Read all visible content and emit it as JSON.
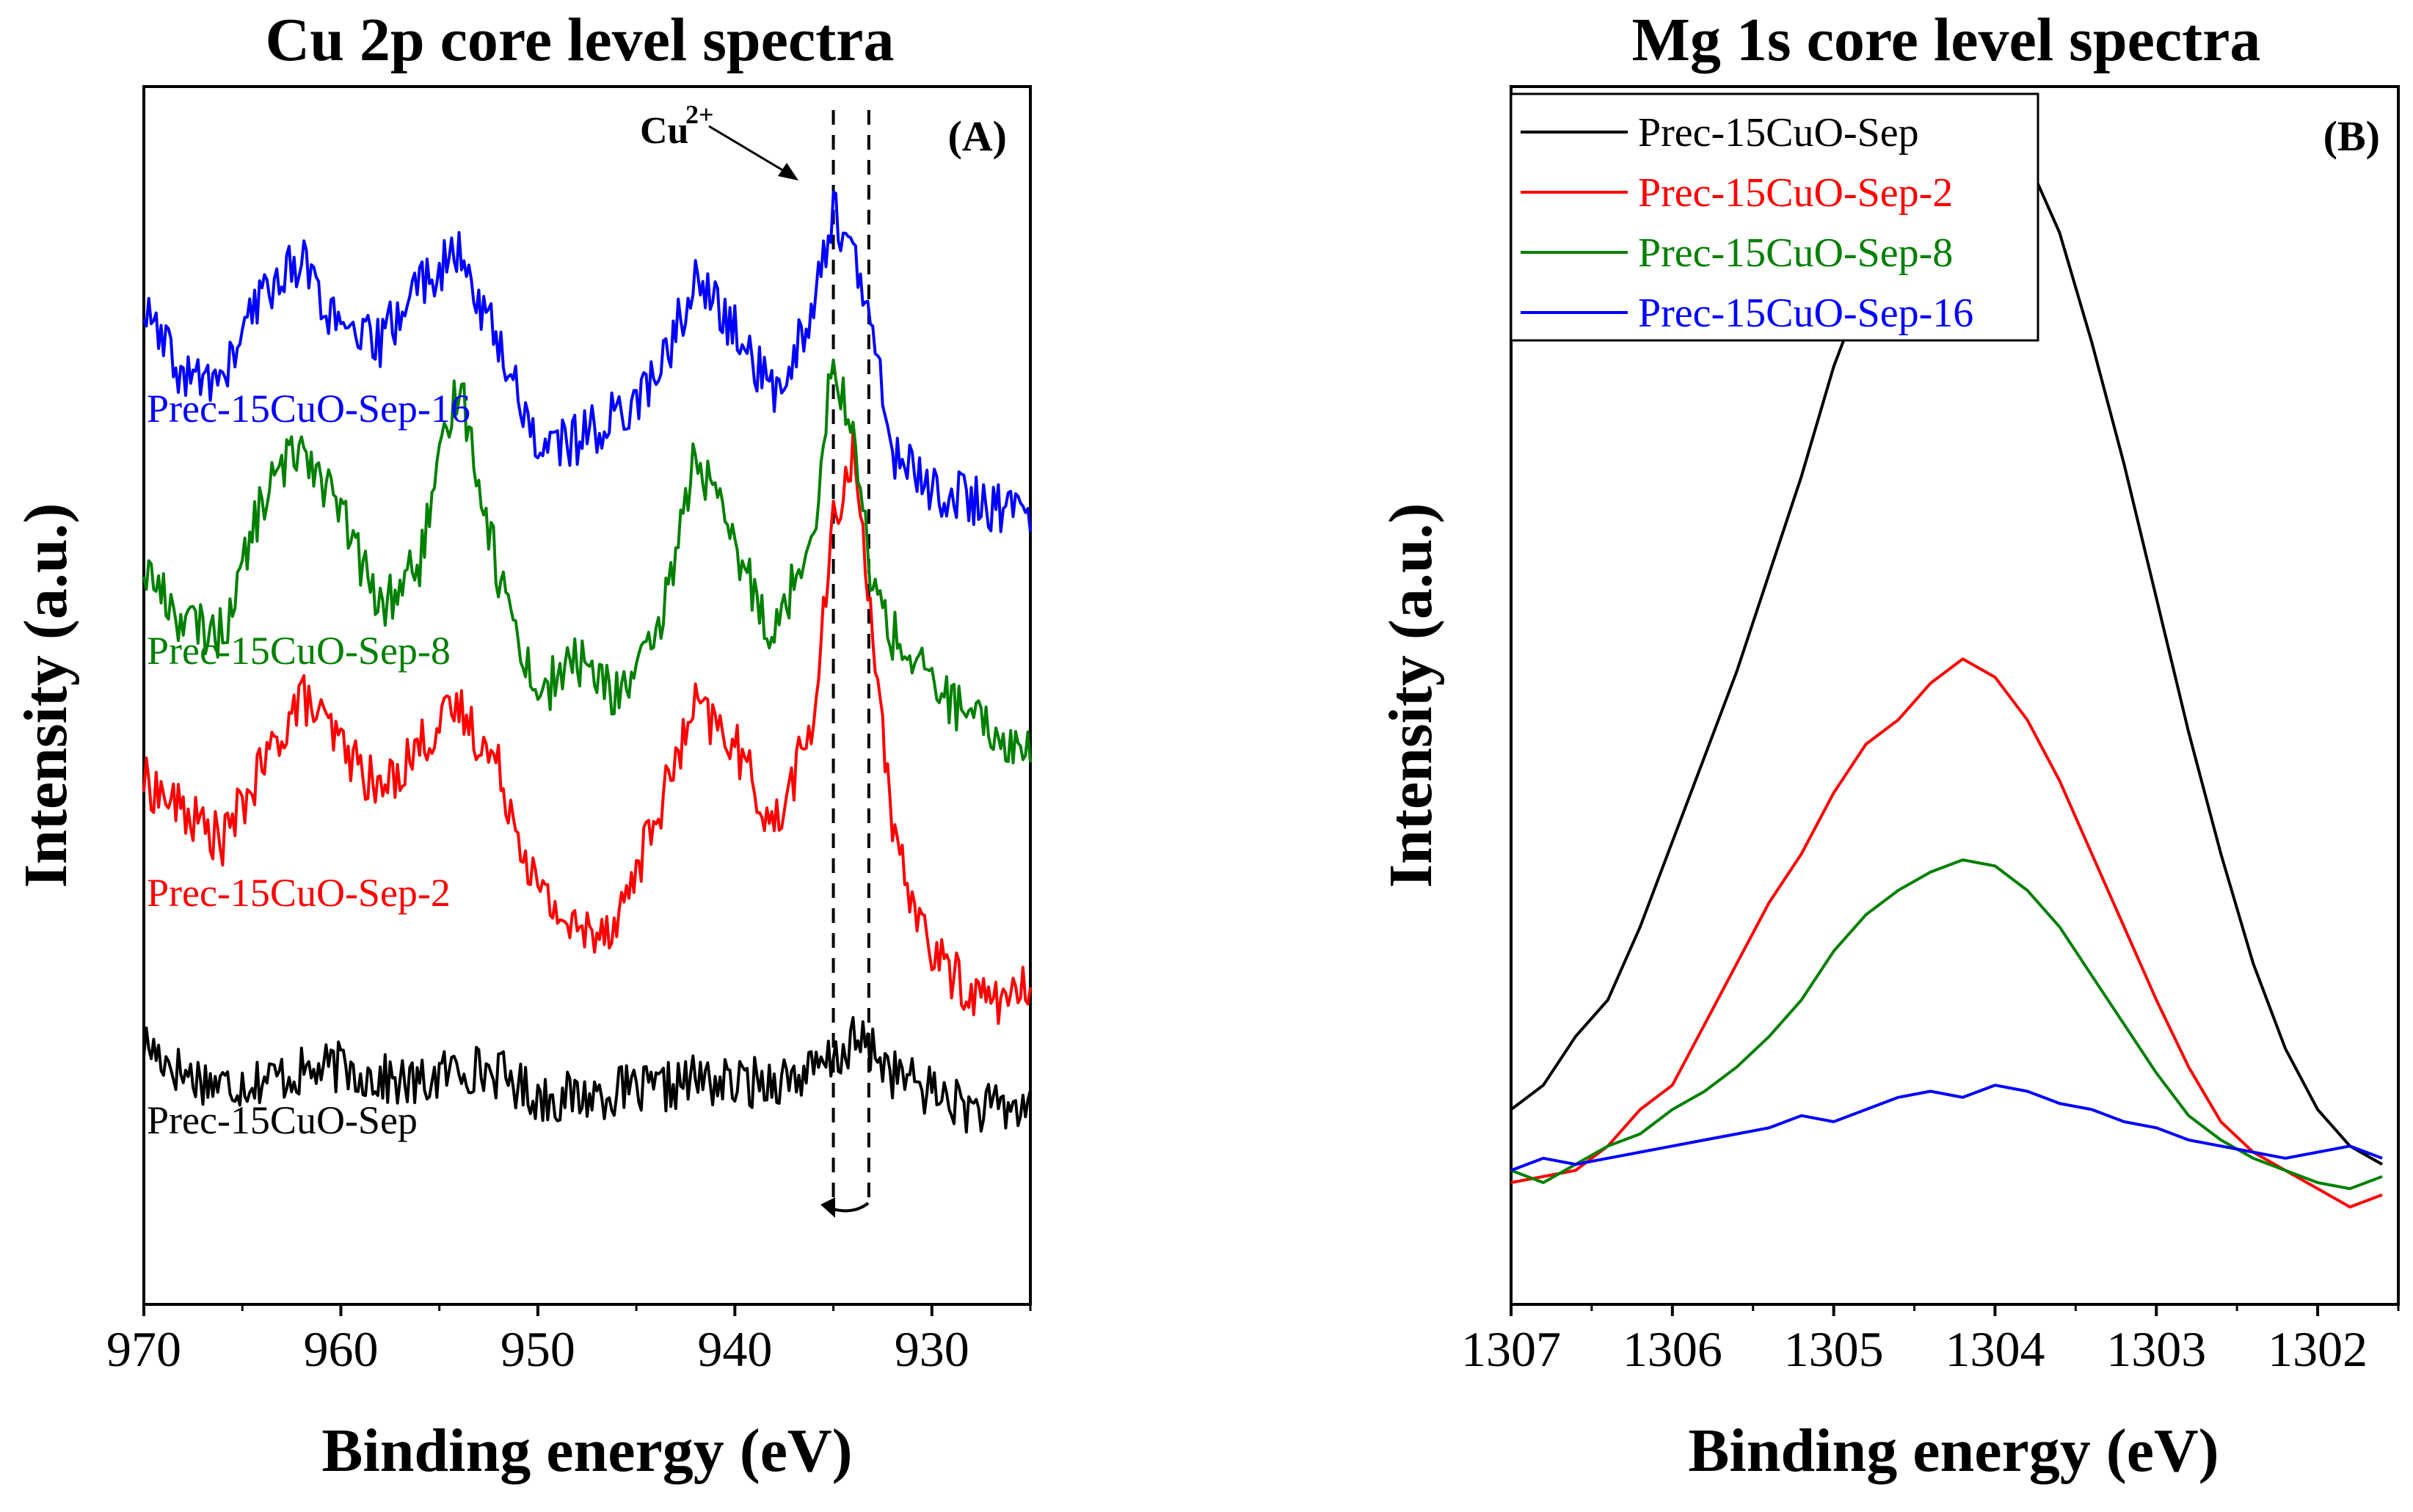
{
  "chart_data": [
    {
      "type": "line",
      "title": "Cu 2p core level spectra",
      "panel_label": "(A)",
      "xlabel": "Binding energy (eV)",
      "ylabel": "Intensity (a.u.)",
      "xlim": [
        970,
        925
      ],
      "ylim": [
        0,
        10
      ],
      "xticks": [
        "970",
        "960",
        "950",
        "940",
        "930"
      ],
      "tick_values": [
        970,
        960,
        950,
        940,
        930
      ],
      "annotation": {
        "text": "Cu",
        "superscript": "2+"
      },
      "guide_lines_x": [
        935.0,
        933.2
      ],
      "series": [
        {
          "name": "Prec-15CuO-Sep",
          "label": "Prec-15CuO-Sep",
          "color": "#000000",
          "x": [
            970,
            968,
            966,
            964,
            962,
            960,
            958,
            956,
            954,
            952,
            950,
            948,
            946,
            944,
            942,
            940,
            938,
            936,
            935,
            934,
            933,
            932,
            930,
            928,
            926,
            925
          ],
          "y": [
            2.15,
            1.9,
            1.8,
            1.85,
            1.9,
            1.95,
            1.85,
            1.8,
            1.95,
            1.9,
            1.7,
            1.7,
            1.75,
            1.75,
            1.85,
            1.8,
            1.85,
            1.9,
            2.0,
            2.15,
            2.1,
            1.9,
            1.75,
            1.6,
            1.6,
            1.65
          ]
        },
        {
          "name": "Prec-15CuO-Sep-2",
          "label": "Prec-15CuO-Sep-2",
          "color": "#ff0000",
          "x": [
            970,
            968,
            966,
            964,
            962,
            960,
            958,
            956,
            954,
            952,
            950,
            948,
            946,
            944,
            942,
            940,
            938,
            936,
            935,
            934,
            933,
            932,
            930,
            928,
            926,
            925
          ],
          "y": [
            4.3,
            4.05,
            3.8,
            4.4,
            5.0,
            4.6,
            4.2,
            4.6,
            4.9,
            4.4,
            3.4,
            3.05,
            3.15,
            4.0,
            4.9,
            4.6,
            3.9,
            4.8,
            6.4,
            7.0,
            5.6,
            3.8,
            2.9,
            2.55,
            2.5,
            2.6
          ]
        },
        {
          "name": "Prec-15CuO-Sep-8",
          "label": "Prec-15CuO-Sep-8",
          "color": "#008000",
          "x": [
            970,
            968,
            966,
            964,
            962,
            960,
            958,
            956,
            954,
            952,
            950,
            948,
            946,
            944,
            942,
            940,
            938,
            936,
            935,
            934,
            933,
            932,
            930,
            928,
            926,
            925
          ],
          "y": [
            6.05,
            5.6,
            5.5,
            6.6,
            7.1,
            6.5,
            5.7,
            6.1,
            7.6,
            6.0,
            5.0,
            5.3,
            5.0,
            5.4,
            7.0,
            6.2,
            5.5,
            6.4,
            7.8,
            7.1,
            5.9,
            5.5,
            5.1,
            4.8,
            4.6,
            4.55
          ]
        },
        {
          "name": "Prec-15CuO-Sep-16",
          "label": "Prec-15CuO-Sep-16",
          "color": "#0000ff",
          "x": [
            970,
            968,
            966,
            964,
            962,
            960,
            958,
            956,
            954,
            952,
            950,
            948,
            946,
            944,
            942,
            940,
            938,
            936,
            935,
            934,
            933,
            932,
            930,
            928,
            926,
            925
          ],
          "y": [
            8.15,
            7.6,
            7.6,
            8.3,
            8.6,
            7.95,
            7.9,
            8.4,
            8.6,
            7.9,
            7.05,
            7.1,
            7.3,
            7.6,
            8.4,
            8.0,
            7.45,
            8.2,
            9.0,
            8.6,
            7.95,
            7.0,
            6.7,
            6.6,
            6.5,
            6.55
          ]
        }
      ]
    },
    {
      "type": "line",
      "title": "Mg 1s core level spectra",
      "panel_label": "(B)",
      "xlabel": "Binding energy (eV)",
      "ylabel": "Intensity (a.u.)",
      "xlim": [
        1307,
        1301.5
      ],
      "ylim": [
        0,
        10
      ],
      "xticks": [
        "1307",
        "1306",
        "1305",
        "1304",
        "1303",
        "1302"
      ],
      "tick_values": [
        1307,
        1306,
        1305,
        1304,
        1303,
        1302
      ],
      "legend_position": "top-left",
      "series": [
        {
          "name": "Prec-15CuO-Sep",
          "color": "#000000",
          "x": [
            1307,
            1306.8,
            1306.6,
            1306.4,
            1306.2,
            1306.0,
            1305.8,
            1305.6,
            1305.4,
            1305.2,
            1305.0,
            1304.8,
            1304.6,
            1304.4,
            1304.2,
            1304.0,
            1303.8,
            1303.6,
            1303.4,
            1303.2,
            1303.0,
            1302.8,
            1302.6,
            1302.4,
            1302.2,
            1302.0,
            1301.8,
            1301.6
          ],
          "y": [
            1.6,
            1.8,
            2.2,
            2.5,
            3.1,
            3.8,
            4.5,
            5.2,
            6.0,
            6.8,
            7.7,
            8.4,
            9.1,
            9.6,
            9.85,
            9.8,
            9.4,
            8.8,
            7.9,
            6.9,
            5.8,
            4.7,
            3.7,
            2.8,
            2.1,
            1.6,
            1.3,
            1.15
          ]
        },
        {
          "name": "Prec-15CuO-Sep-2",
          "color": "#ff0000",
          "x": [
            1307,
            1306.8,
            1306.6,
            1306.4,
            1306.2,
            1306.0,
            1305.8,
            1305.6,
            1305.4,
            1305.2,
            1305.0,
            1304.8,
            1304.6,
            1304.4,
            1304.2,
            1304.0,
            1303.8,
            1303.6,
            1303.4,
            1303.2,
            1303.0,
            1302.8,
            1302.6,
            1302.4,
            1302.2,
            1302.0,
            1301.8,
            1301.6
          ],
          "y": [
            1.0,
            1.05,
            1.1,
            1.3,
            1.6,
            1.8,
            2.3,
            2.8,
            3.3,
            3.7,
            4.2,
            4.6,
            4.8,
            5.1,
            5.3,
            5.15,
            4.8,
            4.3,
            3.7,
            3.1,
            2.5,
            1.95,
            1.5,
            1.25,
            1.1,
            0.95,
            0.8,
            0.9
          ]
        },
        {
          "name": "Prec-15CuO-Sep-8",
          "color": "#008000",
          "x": [
            1307,
            1306.8,
            1306.6,
            1306.4,
            1306.2,
            1306.0,
            1305.8,
            1305.6,
            1305.4,
            1305.2,
            1305.0,
            1304.8,
            1304.6,
            1304.4,
            1304.2,
            1304.0,
            1303.8,
            1303.6,
            1303.4,
            1303.2,
            1303.0,
            1302.8,
            1302.6,
            1302.4,
            1302.2,
            1302.0,
            1301.8,
            1301.6
          ],
          "y": [
            1.1,
            1.0,
            1.15,
            1.3,
            1.4,
            1.6,
            1.75,
            1.95,
            2.2,
            2.5,
            2.9,
            3.2,
            3.4,
            3.55,
            3.65,
            3.6,
            3.4,
            3.1,
            2.7,
            2.3,
            1.9,
            1.55,
            1.35,
            1.2,
            1.1,
            1.0,
            0.95,
            1.05
          ]
        },
        {
          "name": "Prec-15CuO-Sep-16",
          "color": "#0000ff",
          "x": [
            1307,
            1306.8,
            1306.6,
            1306.4,
            1306.2,
            1306.0,
            1305.8,
            1305.6,
            1305.4,
            1305.2,
            1305.0,
            1304.8,
            1304.6,
            1304.4,
            1304.2,
            1304.0,
            1303.8,
            1303.6,
            1303.4,
            1303.2,
            1303.0,
            1302.8,
            1302.6,
            1302.4,
            1302.2,
            1302.0,
            1301.8,
            1301.6
          ],
          "y": [
            1.1,
            1.2,
            1.15,
            1.2,
            1.25,
            1.3,
            1.35,
            1.4,
            1.45,
            1.55,
            1.5,
            1.6,
            1.7,
            1.75,
            1.7,
            1.8,
            1.75,
            1.65,
            1.6,
            1.5,
            1.45,
            1.35,
            1.3,
            1.25,
            1.2,
            1.25,
            1.3,
            1.2
          ]
        }
      ]
    }
  ]
}
